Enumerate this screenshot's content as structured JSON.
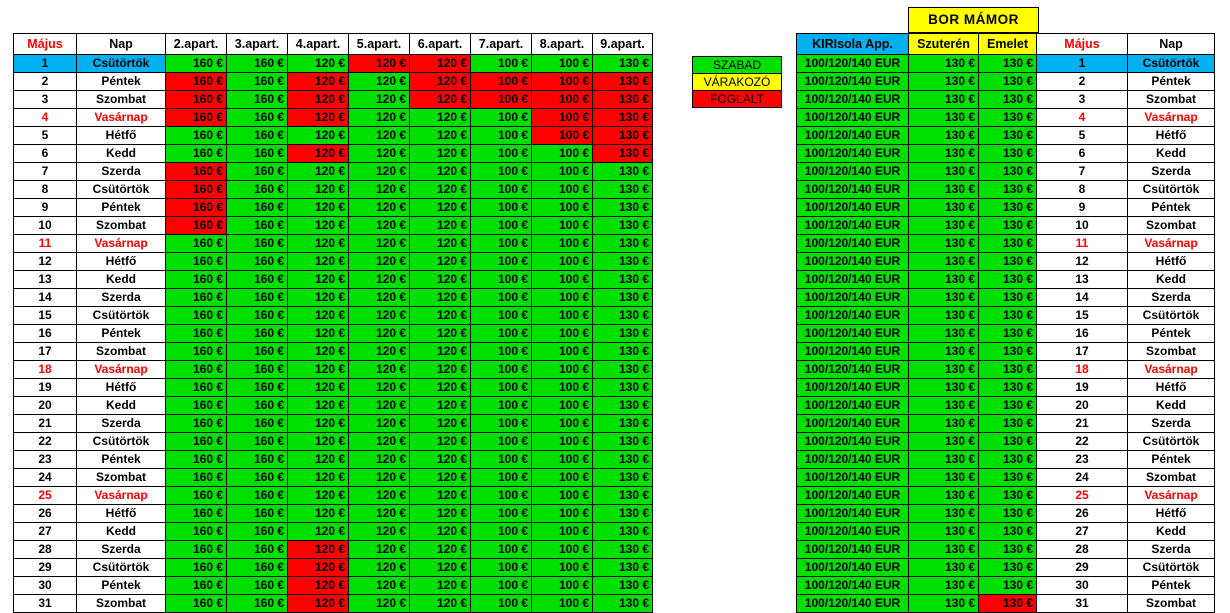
{
  "colors": {
    "free": "#00e000",
    "booked": "#ff0000",
    "waiting": "#ffff00",
    "today": "#00b0f0",
    "sunday": "#ff0000"
  },
  "left": {
    "headers": [
      "Május",
      "Nap",
      "2.apart.",
      "3.apart.",
      "4.apart.",
      "5.apart.",
      "6.apart.",
      "7.apart.",
      "8.apart.",
      "9.apart."
    ],
    "prices": [
      "160 €",
      "160 €",
      "120 €",
      "120 €",
      "120 €",
      "100 €",
      "100 €",
      "130 €"
    ]
  },
  "legend": [
    "SZABAD",
    "VÁRAKOZÓ",
    "FOGLALT"
  ],
  "bor_title": "BOR  MÁMOR",
  "right": {
    "headers": [
      "KIRIsola App.",
      "Szuterén",
      "Emelet",
      "Május",
      "Nap"
    ],
    "kiri": "100/120/140 EUR",
    "price": "130 €"
  },
  "days": [
    {
      "n": "1",
      "d": "Csütörtök",
      "sun": false
    },
    {
      "n": "2",
      "d": "Péntek",
      "sun": false
    },
    {
      "n": "3",
      "d": "Szombat",
      "sun": false
    },
    {
      "n": "4",
      "d": "Vasárnap",
      "sun": true
    },
    {
      "n": "5",
      "d": "Hétfő",
      "sun": false
    },
    {
      "n": "6",
      "d": "Kedd",
      "sun": false
    },
    {
      "n": "7",
      "d": "Szerda",
      "sun": false
    },
    {
      "n": "8",
      "d": "Csütörtök",
      "sun": false
    },
    {
      "n": "9",
      "d": "Péntek",
      "sun": false
    },
    {
      "n": "10",
      "d": "Szombat",
      "sun": false
    },
    {
      "n": "11",
      "d": "Vasárnap",
      "sun": true
    },
    {
      "n": "12",
      "d": "Hétfő",
      "sun": false
    },
    {
      "n": "13",
      "d": "Kedd",
      "sun": false
    },
    {
      "n": "14",
      "d": "Szerda",
      "sun": false
    },
    {
      "n": "15",
      "d": "Csütörtök",
      "sun": false
    },
    {
      "n": "16",
      "d": "Péntek",
      "sun": false
    },
    {
      "n": "17",
      "d": "Szombat",
      "sun": false
    },
    {
      "n": "18",
      "d": "Vasárnap",
      "sun": true
    },
    {
      "n": "19",
      "d": "Hétfő",
      "sun": false
    },
    {
      "n": "20",
      "d": "Kedd",
      "sun": false
    },
    {
      "n": "21",
      "d": "Szerda",
      "sun": false
    },
    {
      "n": "22",
      "d": "Csütörtök",
      "sun": false
    },
    {
      "n": "23",
      "d": "Péntek",
      "sun": false
    },
    {
      "n": "24",
      "d": "Szombat",
      "sun": false
    },
    {
      "n": "25",
      "d": "Vasárnap",
      "sun": true
    },
    {
      "n": "26",
      "d": "Hétfő",
      "sun": false
    },
    {
      "n": "27",
      "d": "Kedd",
      "sun": false
    },
    {
      "n": "28",
      "d": "Szerda",
      "sun": false
    },
    {
      "n": "29",
      "d": "Csütörtök",
      "sun": false
    },
    {
      "n": "30",
      "d": "Péntek",
      "sun": false
    },
    {
      "n": "31",
      "d": "Szombat",
      "sun": false
    }
  ],
  "booked_left": {
    "0": [
      3,
      4
    ],
    "1": [
      0,
      2,
      4,
      5,
      6,
      7
    ],
    "2": [
      0,
      2,
      4,
      5,
      6,
      7
    ],
    "3": [
      0,
      2,
      6,
      7
    ],
    "4": [
      6,
      7
    ],
    "5": [
      2,
      7
    ],
    "6": [
      0
    ],
    "7": [
      0
    ],
    "8": [
      0
    ],
    "9": [
      0
    ],
    "27": [
      2
    ],
    "28": [
      2
    ],
    "29": [
      2
    ],
    "30": [
      2
    ]
  },
  "booked_right": {
    "30": [
      2
    ]
  },
  "today_index": 0
}
